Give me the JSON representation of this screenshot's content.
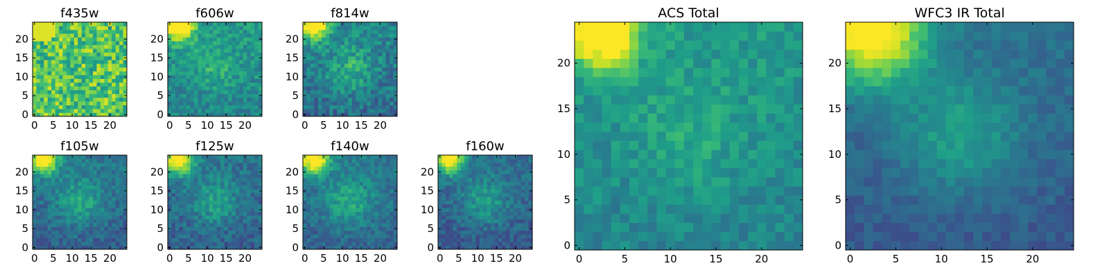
{
  "colormap": "viridis",
  "colormap_stops": [
    "#440154",
    "#482878",
    "#3e4989",
    "#31688e",
    "#26828e",
    "#1f9e89",
    "#35b779",
    "#6ece58",
    "#b5de2b",
    "#fde725"
  ],
  "chart_data": [
    {
      "type": "heatmap",
      "title": "f435w",
      "grid_size": 25,
      "x_ticks": [
        0,
        5,
        10,
        15,
        20
      ],
      "y_ticks": [
        0,
        5,
        10,
        15,
        20
      ],
      "pattern": "noise",
      "base_level": 0.72,
      "noise_amplitude": 0.22
    },
    {
      "type": "heatmap",
      "title": "f606w",
      "grid_size": 25,
      "x_ticks": [
        0,
        5,
        10,
        15,
        20
      ],
      "y_ticks": [
        0,
        5,
        10,
        15,
        20
      ],
      "pattern": "bright_corner",
      "base_level": 0.45,
      "center_level": 0.58,
      "noise_amplitude": 0.12
    },
    {
      "type": "heatmap",
      "title": "f814w",
      "grid_size": 25,
      "x_ticks": [
        0,
        5,
        10,
        15,
        20
      ],
      "y_ticks": [
        0,
        5,
        10,
        15,
        20
      ],
      "pattern": "bright_corner",
      "base_level": 0.36,
      "center_level": 0.58,
      "noise_amplitude": 0.14
    },
    {
      "type": "heatmap",
      "title": "f105w",
      "grid_size": 25,
      "x_ticks": [
        0,
        5,
        10,
        15,
        20
      ],
      "y_ticks": [
        0,
        5,
        10,
        15,
        20
      ],
      "pattern": "bright_corner",
      "base_level": 0.3,
      "center_level": 0.55,
      "noise_amplitude": 0.1
    },
    {
      "type": "heatmap",
      "title": "f125w",
      "grid_size": 25,
      "x_ticks": [
        0,
        5,
        10,
        15,
        20
      ],
      "y_ticks": [
        0,
        5,
        10,
        15,
        20
      ],
      "pattern": "bright_corner",
      "base_level": 0.3,
      "center_level": 0.52,
      "noise_amplitude": 0.11
    },
    {
      "type": "heatmap",
      "title": "f140w",
      "grid_size": 25,
      "x_ticks": [
        0,
        5,
        10,
        15,
        20
      ],
      "y_ticks": [
        0,
        5,
        10,
        15,
        20
      ],
      "pattern": "bright_corner",
      "base_level": 0.32,
      "center_level": 0.56,
      "noise_amplitude": 0.1
    },
    {
      "type": "heatmap",
      "title": "f160w",
      "grid_size": 25,
      "x_ticks": [
        0,
        5,
        10,
        15,
        20
      ],
      "y_ticks": [
        0,
        5,
        10,
        15,
        20
      ],
      "pattern": "bright_corner",
      "base_level": 0.28,
      "center_level": 0.5,
      "noise_amplitude": 0.1
    },
    {
      "type": "heatmap",
      "title": "ACS Total",
      "grid_size": 25,
      "x_ticks": [
        0,
        5,
        10,
        15,
        20
      ],
      "y_ticks": [
        0,
        5,
        10,
        15,
        20
      ],
      "pattern": "bright_corner",
      "base_level": 0.45,
      "center_level": 0.56,
      "noise_amplitude": 0.09
    },
    {
      "type": "heatmap",
      "title": "WFC3 IR Total",
      "grid_size": 25,
      "x_ticks": [
        0,
        5,
        10,
        15,
        20
      ],
      "y_ticks": [
        0,
        5,
        10,
        15,
        20
      ],
      "pattern": "bright_corner_smooth",
      "base_level": 0.28,
      "center_level": 0.52,
      "noise_amplitude": 0.06
    }
  ]
}
